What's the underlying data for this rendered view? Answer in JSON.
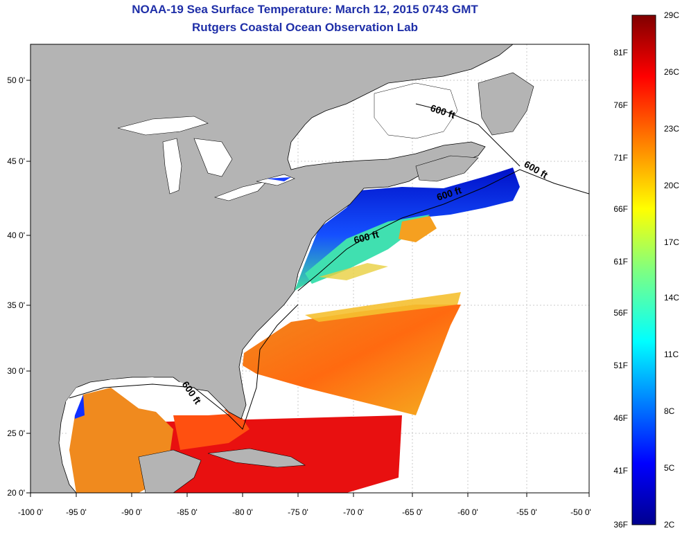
{
  "title": "NOAA-19 Sea Surface Temperature:  March 12, 2015 0743 GMT",
  "subtitle": "Rutgers Coastal Ocean Observation Lab",
  "map": {
    "lon_labels": [
      "-100 0'",
      "-95 0'",
      "-90 0'",
      "-85 0'",
      "-80 0'",
      "-75 0'",
      "-70 0'",
      "-65 0'",
      "-60 0'",
      "-55 0'",
      "-50 0'"
    ],
    "lat_labels": [
      "50 0'",
      "45 0'",
      "40 0'",
      "35 0'",
      "30 0'",
      "25 0'",
      "20 0'"
    ],
    "contour_label": "600 ft",
    "land_color": "#b4b4b4",
    "lake_color": "#ffffff"
  },
  "colorbar": {
    "celsius_labels": [
      "29C",
      "26C",
      "23C",
      "20C",
      "17C",
      "14C",
      "11C",
      "8C",
      "5C",
      "2C"
    ],
    "fahrenheit_labels": [
      "81F",
      "76F",
      "71F",
      "66F",
      "61F",
      "56F",
      "51F",
      "46F",
      "41F",
      "36F"
    ],
    "colors": [
      "#00008f",
      "#0000ff",
      "#0080ff",
      "#00ffff",
      "#80ff80",
      "#ffff00",
      "#ff8000",
      "#ff0000",
      "#800000"
    ]
  }
}
